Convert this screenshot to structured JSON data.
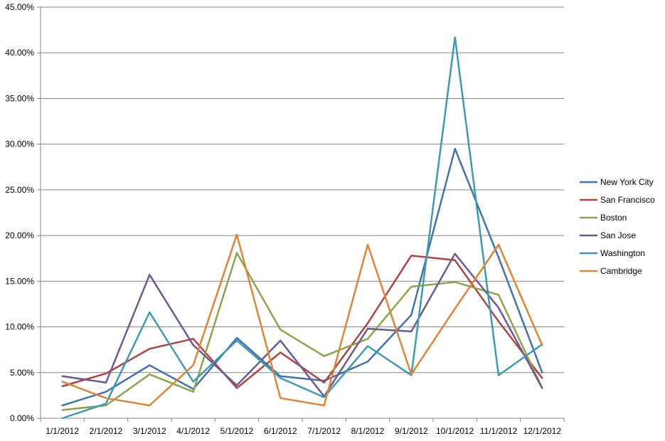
{
  "chart_data": {
    "type": "line",
    "title": "",
    "xlabel": "",
    "ylabel": "",
    "categories": [
      "1/1/2012",
      "2/1/2012",
      "3/1/2012",
      "4/1/2012",
      "5/1/2012",
      "6/1/2012",
      "7/1/2012",
      "8/1/2012",
      "9/1/2012",
      "10/1/2012",
      "11/1/2012",
      "12/1/2012"
    ],
    "y_ticks": [
      "0.00%",
      "5.00%",
      "10.00%",
      "15.00%",
      "20.00%",
      "25.00%",
      "30.00%",
      "35.00%",
      "40.00%",
      "45.00%"
    ],
    "ylim": [
      0,
      45
    ],
    "y_unit": "percent",
    "grid": "horizontal",
    "legend_position": "right",
    "series": [
      {
        "name": "New York City",
        "color": "#4572A7",
        "values": [
          1.4,
          2.9,
          5.8,
          3.2,
          8.8,
          4.6,
          4.1,
          6.2,
          11.3,
          29.5,
          17.6,
          5.0
        ]
      },
      {
        "name": "San Francisco",
        "color": "#AA4643",
        "values": [
          3.5,
          4.9,
          7.6,
          8.7,
          3.3,
          7.2,
          3.9,
          10.4,
          17.8,
          17.3,
          10.6,
          4.4
        ]
      },
      {
        "name": "Boston",
        "color": "#89A54E",
        "values": [
          0.9,
          1.4,
          4.8,
          2.9,
          18.1,
          9.7,
          6.8,
          8.7,
          14.4,
          14.9,
          13.5,
          3.3
        ]
      },
      {
        "name": "San Jose",
        "color": "#71588F",
        "values": [
          4.6,
          3.9,
          15.7,
          8.0,
          3.6,
          8.5,
          2.4,
          9.8,
          9.5,
          18.0,
          12.1,
          3.3
        ]
      },
      {
        "name": "Washington",
        "color": "#4198AF",
        "values": [
          0.0,
          1.6,
          11.6,
          4.0,
          8.5,
          4.4,
          2.3,
          7.9,
          4.7,
          41.7,
          4.7,
          8.1
        ]
      },
      {
        "name": "Cambridge",
        "color": "#DB843D",
        "values": [
          4.0,
          2.2,
          1.4,
          5.8,
          20.1,
          2.2,
          1.4,
          19.0,
          4.8,
          12.0,
          19.0,
          8.0
        ]
      }
    ]
  }
}
